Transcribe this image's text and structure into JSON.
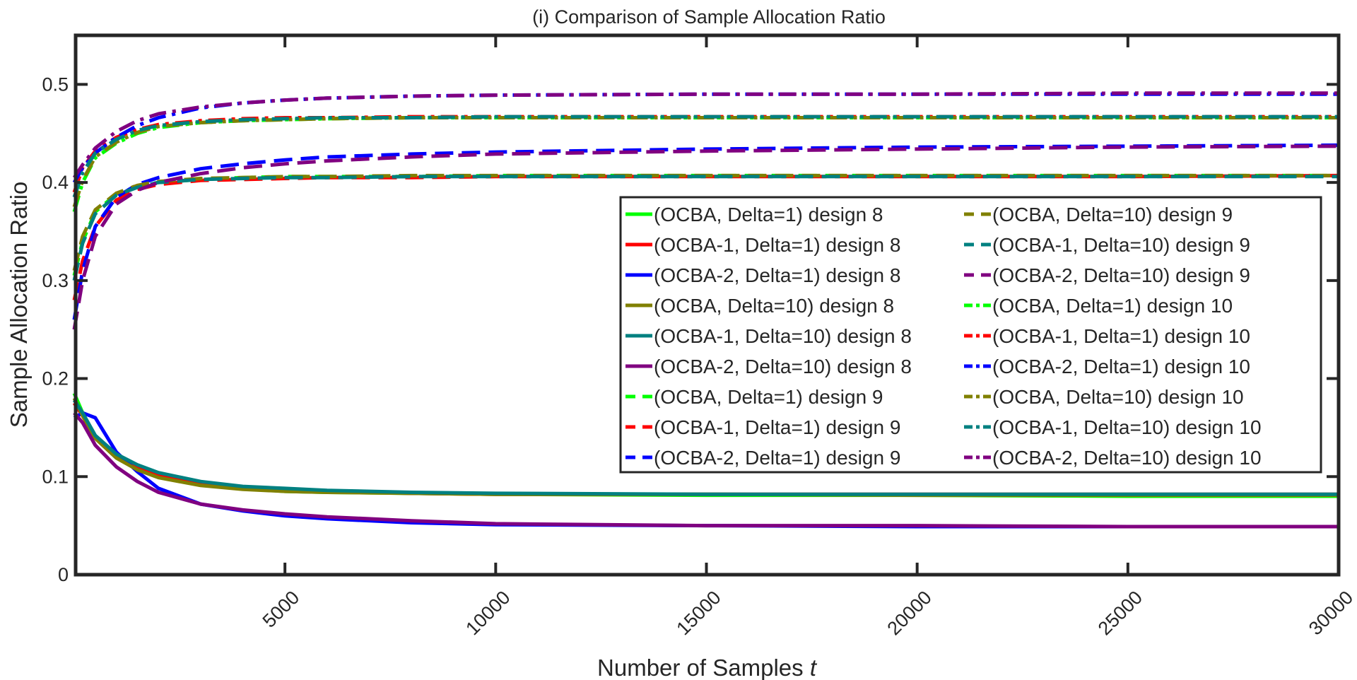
{
  "chart_data": {
    "type": "line",
    "title": "(i) Comparison of Sample Allocation Ratio",
    "xlabel": "Number of Samples",
    "xlabel_var": "t",
    "ylabel": "Sample Allocation Ratio",
    "xlim": [
      0,
      30000
    ],
    "ylim": [
      0,
      0.55
    ],
    "xticks": [
      5000,
      10000,
      15000,
      20000,
      25000,
      30000
    ],
    "xtick_labels": [
      "5000",
      "10000",
      "15000",
      "20000",
      "25000",
      "30000"
    ],
    "yticks": [
      0,
      0.1,
      0.2,
      0.3,
      0.4,
      0.5
    ],
    "ytick_labels": [
      "0",
      "0.1",
      "0.2",
      "0.3",
      "0.4",
      "0.5"
    ],
    "grid": false,
    "legend_placement": "center-right",
    "x": [
      0,
      200,
      500,
      1000,
      1500,
      2000,
      3000,
      4000,
      5000,
      6000,
      8000,
      10000,
      15000,
      20000,
      25000,
      30000
    ],
    "series": [
      {
        "name": "(OCBA, Delta=1) design 8",
        "color": "#00ff00",
        "style": "solid",
        "values": [
          0.185,
          0.165,
          0.14,
          0.12,
          0.108,
          0.1,
          0.092,
          0.088,
          0.085,
          0.084,
          0.083,
          0.082,
          0.081,
          0.081,
          0.08,
          0.08
        ]
      },
      {
        "name": "(OCBA-1, Delta=1) design 8",
        "color": "#ff0000",
        "style": "solid",
        "values": [
          0.175,
          0.162,
          0.14,
          0.121,
          0.11,
          0.102,
          0.094,
          0.089,
          0.086,
          0.085,
          0.083,
          0.082,
          0.082,
          0.082,
          0.082,
          0.082
        ]
      },
      {
        "name": "(OCBA-2, Delta=1) design 8",
        "color": "#0000ff",
        "style": "solid",
        "values": [
          0.16,
          0.165,
          0.16,
          0.125,
          0.105,
          0.088,
          0.072,
          0.065,
          0.06,
          0.057,
          0.053,
          0.051,
          0.05,
          0.049,
          0.049,
          0.049
        ]
      },
      {
        "name": "(OCBA, Delta=10) design 8",
        "color": "#808000",
        "style": "solid",
        "values": [
          0.18,
          0.162,
          0.139,
          0.119,
          0.107,
          0.099,
          0.091,
          0.087,
          0.085,
          0.084,
          0.083,
          0.082,
          0.082,
          0.081,
          0.081,
          0.081
        ]
      },
      {
        "name": "(OCBA-1, Delta=10) design 8",
        "color": "#008080",
        "style": "solid",
        "values": [
          0.178,
          0.165,
          0.142,
          0.123,
          0.112,
          0.104,
          0.095,
          0.09,
          0.088,
          0.086,
          0.084,
          0.083,
          0.082,
          0.082,
          0.082,
          0.082
        ]
      },
      {
        "name": "(OCBA-2, Delta=10) design 8",
        "color": "#800080",
        "style": "solid",
        "values": [
          0.165,
          0.155,
          0.132,
          0.11,
          0.095,
          0.084,
          0.072,
          0.066,
          0.062,
          0.059,
          0.055,
          0.052,
          0.05,
          0.05,
          0.049,
          0.049
        ]
      },
      {
        "name": "(OCBA, Delta=1) design 9",
        "color": "#00ff00",
        "style": "dashed",
        "values": [
          0.305,
          0.34,
          0.37,
          0.388,
          0.396,
          0.4,
          0.403,
          0.405,
          0.406,
          0.406,
          0.406,
          0.407,
          0.407,
          0.407,
          0.407,
          0.407
        ]
      },
      {
        "name": "(OCBA-1, Delta=1) design 9",
        "color": "#ff0000",
        "style": "dashed",
        "values": [
          0.28,
          0.32,
          0.355,
          0.382,
          0.393,
          0.398,
          0.402,
          0.403,
          0.404,
          0.405,
          0.405,
          0.406,
          0.406,
          0.406,
          0.406,
          0.407
        ]
      },
      {
        "name": "(OCBA-2, Delta=1) design 9",
        "color": "#0000ff",
        "style": "dashed",
        "values": [
          0.26,
          0.31,
          0.355,
          0.385,
          0.398,
          0.405,
          0.414,
          0.419,
          0.423,
          0.426,
          0.429,
          0.431,
          0.434,
          0.436,
          0.437,
          0.438
        ]
      },
      {
        "name": "(OCBA, Delta=10) design 9",
        "color": "#808000",
        "style": "dashed",
        "values": [
          0.31,
          0.345,
          0.372,
          0.389,
          0.397,
          0.401,
          0.404,
          0.405,
          0.406,
          0.406,
          0.407,
          0.407,
          0.407,
          0.407,
          0.407,
          0.407
        ]
      },
      {
        "name": "(OCBA-1, Delta=10) design 9",
        "color": "#008080",
        "style": "dashed",
        "values": [
          0.3,
          0.338,
          0.368,
          0.387,
          0.395,
          0.4,
          0.403,
          0.404,
          0.405,
          0.405,
          0.406,
          0.406,
          0.406,
          0.406,
          0.406,
          0.406
        ]
      },
      {
        "name": "(OCBA-2, Delta=10) design 9",
        "color": "#800080",
        "style": "dashed",
        "values": [
          0.25,
          0.3,
          0.345,
          0.378,
          0.392,
          0.4,
          0.409,
          0.415,
          0.419,
          0.422,
          0.426,
          0.429,
          0.432,
          0.434,
          0.436,
          0.437
        ]
      },
      {
        "name": "(OCBA, Delta=1) design 10",
        "color": "#00ff00",
        "style": "dashdot",
        "values": [
          0.37,
          0.4,
          0.425,
          0.44,
          0.45,
          0.456,
          0.461,
          0.463,
          0.464,
          0.465,
          0.466,
          0.466,
          0.466,
          0.466,
          0.466,
          0.466
        ]
      },
      {
        "name": "(OCBA-1, Delta=1) design 10",
        "color": "#ff0000",
        "style": "dashdot",
        "values": [
          0.39,
          0.415,
          0.432,
          0.446,
          0.454,
          0.459,
          0.463,
          0.465,
          0.466,
          0.466,
          0.467,
          0.467,
          0.467,
          0.467,
          0.467,
          0.467
        ]
      },
      {
        "name": "(OCBA-2, Delta=1) design 10",
        "color": "#0000ff",
        "style": "dashdot",
        "values": [
          0.4,
          0.415,
          0.43,
          0.446,
          0.458,
          0.466,
          0.476,
          0.481,
          0.484,
          0.486,
          0.488,
          0.489,
          0.49,
          0.49,
          0.49,
          0.49
        ]
      },
      {
        "name": "(OCBA, Delta=10) design 10",
        "color": "#808000",
        "style": "dashdot",
        "values": [
          0.375,
          0.402,
          0.426,
          0.441,
          0.451,
          0.457,
          0.461,
          0.463,
          0.464,
          0.465,
          0.466,
          0.466,
          0.466,
          0.466,
          0.466,
          0.466
        ]
      },
      {
        "name": "(OCBA-1, Delta=10) design 10",
        "color": "#008080",
        "style": "dashdot",
        "values": [
          0.385,
          0.41,
          0.43,
          0.444,
          0.453,
          0.458,
          0.462,
          0.464,
          0.465,
          0.466,
          0.466,
          0.467,
          0.467,
          0.467,
          0.467,
          0.467
        ]
      },
      {
        "name": "(OCBA-2, Delta=10) design 10",
        "color": "#800080",
        "style": "dashdot",
        "values": [
          0.405,
          0.418,
          0.435,
          0.452,
          0.463,
          0.47,
          0.477,
          0.481,
          0.484,
          0.486,
          0.488,
          0.489,
          0.49,
          0.49,
          0.491,
          0.491
        ]
      }
    ]
  }
}
